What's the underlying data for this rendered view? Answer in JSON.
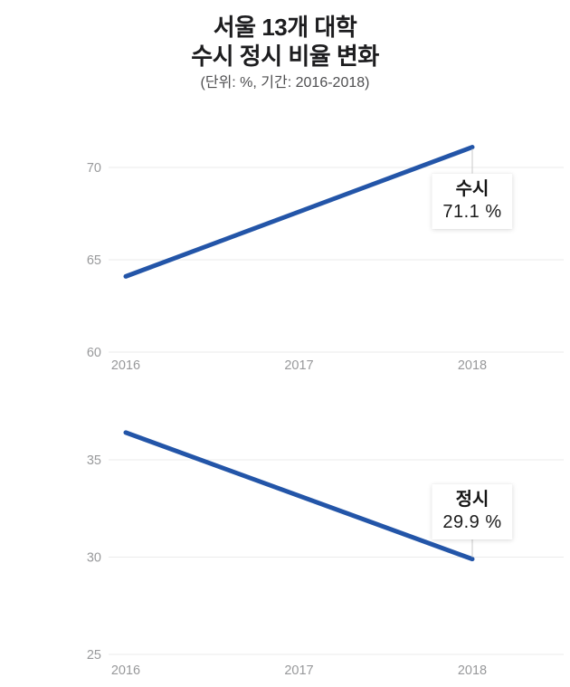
{
  "header": {
    "title_line1": "서울 13개 대학",
    "title_line2": "수시 정시 비율 변화",
    "subtitle": "(단위: %, 기간: 2016-2018)"
  },
  "colors": {
    "line": "#2355a8",
    "grid": "#ebebeb",
    "tick_text": "#98999b",
    "connector": "#c9c9c9",
    "title_text": "#1d1d1f"
  },
  "chart_data": [
    {
      "type": "line",
      "series_name": "수시",
      "x": [
        2016,
        2018
      ],
      "values": [
        64.1,
        71.1
      ],
      "x_tick_labels": [
        "2016",
        "2017",
        "2018"
      ],
      "y_ticks": [
        70,
        65,
        60
      ],
      "ylim": [
        58.5,
        73.7
      ],
      "unit": "%",
      "grid": "horizontal-only",
      "legend": "none",
      "annotation": {
        "label": "수시",
        "value_text": "71.1 %",
        "position": "below-line-end"
      }
    },
    {
      "type": "line",
      "series_name": "정시",
      "x": [
        2016,
        2018
      ],
      "values": [
        36.4,
        29.9
      ],
      "x_tick_labels": [
        "2016",
        "2017",
        "2018"
      ],
      "y_ticks": [
        35,
        30,
        25
      ],
      "ylim": [
        23.5,
        38.9
      ],
      "unit": "%",
      "grid": "horizontal-only",
      "legend": "none",
      "annotation": {
        "label": "정시",
        "value_text": "29.9 %",
        "position": "above-line-end"
      }
    }
  ]
}
